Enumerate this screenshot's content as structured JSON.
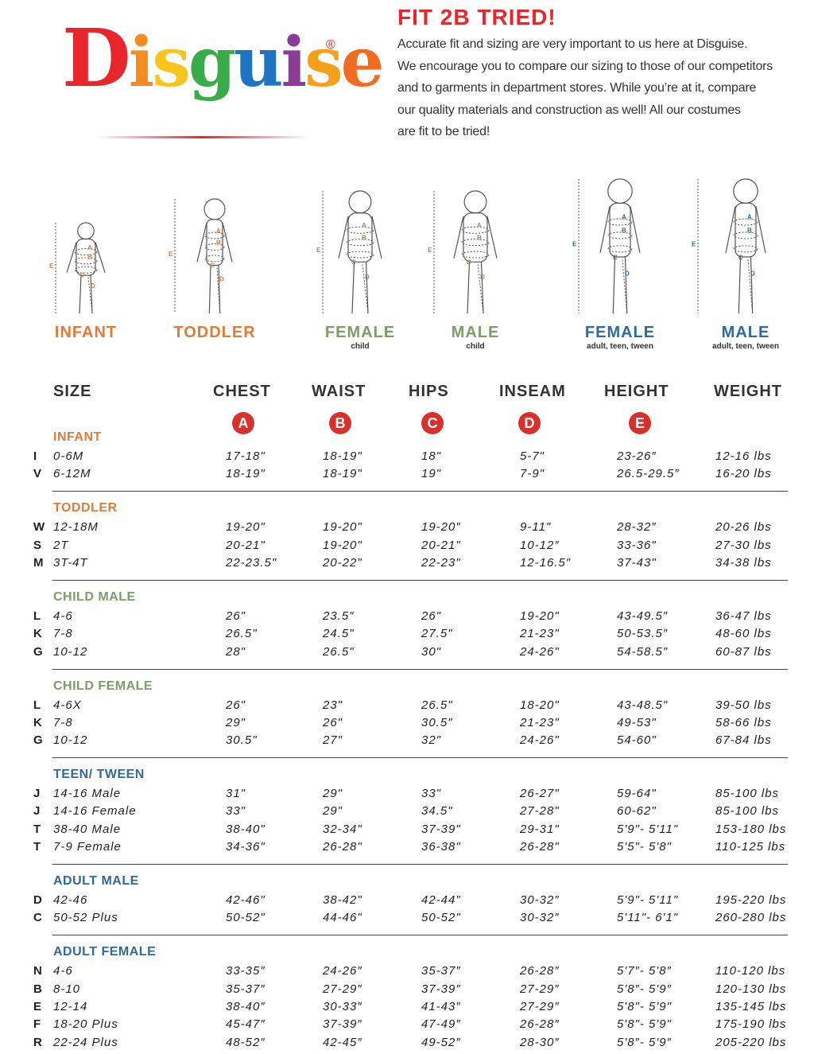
{
  "logo": {
    "text": "Disguise",
    "mark": "®"
  },
  "header": {
    "title": "FIT 2B TRIED!",
    "lines": [
      "Accurate fit and sizing are very important to us here at Disguise.",
      "We encourage you to compare our sizing to those of our competitors",
      "and to garments in department stores. While you’re at it, compare",
      "our quality materials and construction as well! All our costumes",
      "are fit to be tried!"
    ]
  },
  "figures": [
    {
      "label": "INFANT",
      "markers": [
        "A",
        "B",
        "C",
        "D",
        "E"
      ]
    },
    {
      "label": "TODDLER",
      "markers": [
        "A",
        "B",
        "C",
        "D",
        "E"
      ]
    },
    {
      "label": "FEMALE",
      "sublabel": "child",
      "markers": [
        "A",
        "B",
        "C",
        "D",
        "E"
      ]
    },
    {
      "label": "MALE",
      "sublabel": "child",
      "markers": [
        "A",
        "B",
        "C",
        "D",
        "E"
      ]
    },
    {
      "label": "FEMALE",
      "sublabel": "adult, teen, tween",
      "markers": [
        "A",
        "B",
        "C",
        "D",
        "E"
      ]
    },
    {
      "label": "MALE",
      "sublabel": "adult, teen, tween",
      "markers": [
        "A",
        "B",
        "C",
        "D",
        "E"
      ]
    }
  ],
  "table": {
    "columns": [
      "SIZE",
      "CHEST",
      "WAIST",
      "HIPS",
      "INSEAM",
      "HEIGHT",
      "WEIGHT"
    ],
    "badges": [
      "A",
      "B",
      "C",
      "D",
      "E"
    ],
    "groups": [
      {
        "title": "INFANT",
        "rows": [
          [
            "I",
            "0-6M",
            "17-18\"",
            "18-19\"",
            "18\"",
            "5-7\"",
            "23-26″",
            "12-16 lbs"
          ],
          [
            "V",
            "6-12M",
            "18-19\"",
            "18-19\"",
            "19\"",
            "7-9\"",
            "26.5-29.5″",
            "16-20 lbs"
          ]
        ]
      },
      {
        "title": "TODDLER",
        "rows": [
          [
            "W",
            "12-18M",
            "19-20\"",
            "19-20\"",
            "19-20″",
            "9-11\"",
            "28-32″",
            "20-26 lbs"
          ],
          [
            "S",
            "2T",
            "20-21\"",
            "19-20\"",
            "20-21\"",
            "10-12″",
            "33-36\"",
            "27-30 lbs"
          ],
          [
            "M",
            "3T-4T",
            "22-23.5\"",
            "20-22\"",
            "22-23\"",
            "12-16.5″",
            "37-43\"",
            "34-38 lbs"
          ]
        ]
      },
      {
        "title": "CHILD MALE",
        "rows": [
          [
            "L",
            "4-6",
            "26\"",
            "23.5″",
            "26\"",
            "19-20\"",
            "43-49.5″",
            "36-47 lbs"
          ],
          [
            "K",
            "7-8",
            "26.5\"",
            "24.5\"",
            "27.5\"",
            "21-23\"",
            "50-53.5″",
            "48-60 lbs"
          ],
          [
            "G",
            "10-12",
            "28\"",
            "26.5\"",
            "30\"",
            "24-26\"",
            "54-58.5\"",
            "60-87 lbs"
          ]
        ]
      },
      {
        "title": "CHILD FEMALE",
        "rows": [
          [
            "L",
            "4-6X",
            "26\"",
            "23\"",
            "26.5\"",
            "18-20\"",
            "43-48.5\"",
            "39-50 lbs"
          ],
          [
            "K",
            "7-8",
            "29\"",
            "26\"",
            "30.5\"",
            "21-23\"",
            "49-53\"",
            "58-66 lbs"
          ],
          [
            "G",
            "10-12",
            "30.5\"",
            "27\"",
            "32\"",
            "24-26\"",
            "54-60\"",
            "67-84 lbs"
          ]
        ]
      },
      {
        "title": "TEEN/ TWEEN",
        "rows": [
          [
            "J",
            "14-16 Male",
            "31\"",
            "29\"",
            "33\"",
            "26-27\"",
            "59-64\"",
            "85-100 lbs"
          ],
          [
            "J",
            "14-16 Female",
            "33\"",
            "29\"",
            "34.5\"",
            "27-28\"",
            "60-62\"",
            "85-100 lbs"
          ],
          [
            "T",
            "38-40 Male",
            "38-40\"",
            "32-34\"",
            "37-39\"",
            "29-31\"",
            "5'9\"- 5'11\"",
            "153-180 lbs"
          ],
          [
            "T",
            "7-9 Female",
            "34-36\"",
            "26-28\"",
            "36-38\"",
            "26-28\"",
            "5'5\"- 5'8\"",
            "110-125 lbs"
          ]
        ]
      },
      {
        "title": "ADULT MALE",
        "rows": [
          [
            "D",
            "42-46",
            "42-46\"",
            "38-42\"",
            "42-44\"",
            "30-32″",
            "5'9\"- 5'11\"",
            "195-220 lbs"
          ],
          [
            "C",
            "50-52 Plus",
            "50-52\"",
            "44-46\"",
            "50-52\"",
            "30-32″",
            "5'11\"- 6'1\"",
            "260-280 lbs"
          ]
        ]
      },
      {
        "title": "ADULT FEMALE",
        "rows": [
          [
            "N",
            "4-6",
            "33-35″",
            "24-26″",
            "35-37″",
            "26-28″",
            "5'7″- 5'8″",
            "110-120 lbs"
          ],
          [
            "B",
            "8-10",
            "35-37″",
            "27-29″",
            "37-39″",
            "27-29″",
            "5'8″- 5'9″",
            "120-130 lbs"
          ],
          [
            "E",
            "12-14",
            "38-40″",
            "30-33″",
            "41-43″",
            "27-29″",
            "5'8\"- 5'9\"",
            "135-145 lbs"
          ],
          [
            "F",
            "18-20 Plus",
            "45-47″",
            "37-39″",
            "47-49″",
            "26-28″",
            "5'8\"- 5'9\"",
            "175-190 lbs"
          ],
          [
            "R",
            "22-24 Plus",
            "48-52″",
            "42-45″",
            "49-52″",
            "28-30″",
            "5'8″- 5'9″",
            "205-220 lbs"
          ]
        ]
      }
    ]
  }
}
